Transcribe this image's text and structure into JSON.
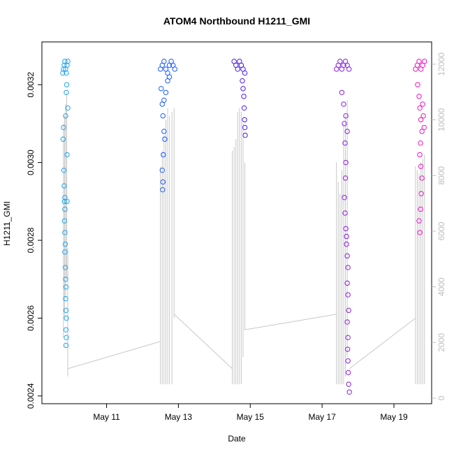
{
  "chart_data": {
    "type": "scatter",
    "title": "ATOM4 Northbound H1211_GMI",
    "xlabel": "Date",
    "ylabel": "H1211_GMI",
    "x_ticks": [
      "May 11",
      "May 13",
      "May 15",
      "May 17",
      "May 19"
    ],
    "x_tick_days": [
      11,
      13,
      15,
      17,
      19
    ],
    "xlim_days": [
      9.2,
      20.05
    ],
    "ylim": [
      0.00238,
      0.00331
    ],
    "y_ticks": [
      0.0024,
      0.0026,
      0.0028,
      0.003,
      0.0032
    ],
    "y_tick_labels": [
      "0.0024",
      "0.0026",
      "0.0028",
      "0.0030",
      "0.0032"
    ],
    "right_axis": {
      "label": "",
      "ylim": [
        -200,
        12800
      ],
      "ticks": [
        0,
        2000,
        4000,
        6000,
        8000,
        10000,
        12000
      ],
      "tick_labels": [
        "0",
        "2000",
        "4000",
        "6000",
        "8000",
        "10000",
        "12000"
      ],
      "color": "#bdbdbd"
    },
    "series": [
      {
        "color": "#1EA6F2",
        "points": [
          [
            9.78,
            0.00323
          ],
          [
            9.8,
            0.00324
          ],
          [
            9.82,
            0.00325
          ],
          [
            9.84,
            0.00326
          ],
          [
            9.86,
            0.00324
          ],
          [
            9.88,
            0.00323
          ],
          [
            9.9,
            0.00325
          ],
          [
            9.92,
            0.00326
          ],
          [
            9.79,
            0.00306
          ],
          [
            9.8,
            0.00309
          ],
          [
            9.81,
            0.00298
          ],
          [
            9.82,
            0.00294
          ],
          [
            9.83,
            0.0029
          ],
          [
            9.84,
            0.00288
          ],
          [
            9.83,
            0.00285
          ],
          [
            9.84,
            0.00282
          ],
          [
            9.85,
            0.00279
          ],
          [
            9.84,
            0.00277
          ],
          [
            9.85,
            0.00273
          ],
          [
            9.86,
            0.0027
          ],
          [
            9.87,
            0.00268
          ],
          [
            9.86,
            0.00265
          ],
          [
            9.87,
            0.00262
          ],
          [
            9.88,
            0.0026
          ],
          [
            9.87,
            0.00257
          ],
          [
            9.88,
            0.00255
          ],
          [
            9.87,
            0.00253
          ],
          [
            9.86,
            0.00312
          ],
          [
            9.88,
            0.00318
          ],
          [
            9.9,
            0.00302
          ],
          [
            9.9,
            0.0029
          ],
          [
            9.92,
            0.00314
          ],
          [
            9.84,
            0.00291
          ],
          [
            9.89,
            0.0032
          ]
        ],
        "lines": [
          [
            9.8,
            0.00255,
            0.0031
          ],
          [
            9.83,
            0.0026,
            0.00312
          ],
          [
            9.86,
            0.00265,
            0.00315
          ],
          [
            9.89,
            0.0027,
            0.00318
          ],
          [
            9.92,
            0.00245,
            0.00278
          ]
        ]
      },
      {
        "color": "#1A5CFF",
        "points": [
          [
            12.5,
            0.00324
          ],
          [
            12.55,
            0.00325
          ],
          [
            12.6,
            0.00326
          ],
          [
            12.65,
            0.00324
          ],
          [
            12.7,
            0.00323
          ],
          [
            12.75,
            0.00325
          ],
          [
            12.8,
            0.00326
          ],
          [
            12.85,
            0.00325
          ],
          [
            12.9,
            0.00324
          ],
          [
            12.52,
            0.00319
          ],
          [
            12.55,
            0.00315
          ],
          [
            12.57,
            0.00312
          ],
          [
            12.6,
            0.00308
          ],
          [
            12.62,
            0.00306
          ],
          [
            12.58,
            0.00302
          ],
          [
            12.55,
            0.00298
          ],
          [
            12.57,
            0.00295
          ],
          [
            12.56,
            0.00293
          ],
          [
            12.6,
            0.00316
          ],
          [
            12.65,
            0.00318
          ],
          [
            12.7,
            0.00321
          ],
          [
            12.75,
            0.00322
          ]
        ],
        "lines": [
          [
            12.5,
            0.00243,
            0.00299
          ],
          [
            12.55,
            0.00243,
            0.00303
          ],
          [
            12.6,
            0.00243,
            0.00307
          ],
          [
            12.65,
            0.00243,
            0.00311
          ],
          [
            12.7,
            0.00243,
            0.00314
          ],
          [
            12.75,
            0.00243,
            0.00312
          ],
          [
            12.82,
            0.00243,
            0.00313
          ],
          [
            12.88,
            0.0026,
            0.00314
          ]
        ]
      },
      {
        "color": "#4E1AF0",
        "points": [
          [
            14.55,
            0.00326
          ],
          [
            14.6,
            0.00325
          ],
          [
            14.65,
            0.00324
          ],
          [
            14.7,
            0.00326
          ],
          [
            14.75,
            0.00325
          ],
          [
            14.8,
            0.00324
          ],
          [
            14.85,
            0.00323
          ],
          [
            14.78,
            0.00321
          ],
          [
            14.8,
            0.00319
          ],
          [
            14.82,
            0.00317
          ],
          [
            14.83,
            0.00314
          ],
          [
            14.84,
            0.00311
          ],
          [
            14.85,
            0.00309
          ],
          [
            14.86,
            0.00307
          ]
        ],
        "lines": [
          [
            14.5,
            0.00243,
            0.00303
          ],
          [
            14.55,
            0.00243,
            0.00304
          ],
          [
            14.6,
            0.00243,
            0.00306
          ],
          [
            14.65,
            0.00243,
            0.00313
          ],
          [
            14.7,
            0.00243,
            0.00314
          ],
          [
            14.75,
            0.00243,
            0.00313
          ],
          [
            14.8,
            0.0025,
            0.0031
          ],
          [
            14.85,
            0.00257,
            0.003
          ]
        ]
      },
      {
        "color": "#8A1FE0",
        "points": [
          [
            17.4,
            0.00324
          ],
          [
            17.45,
            0.00325
          ],
          [
            17.5,
            0.00326
          ],
          [
            17.55,
            0.00324
          ],
          [
            17.6,
            0.00325
          ],
          [
            17.65,
            0.00326
          ],
          [
            17.7,
            0.00325
          ],
          [
            17.75,
            0.00324
          ],
          [
            17.55,
            0.00318
          ],
          [
            17.6,
            0.00315
          ],
          [
            17.62,
            0.0031
          ],
          [
            17.64,
            0.00305
          ],
          [
            17.66,
            0.003
          ],
          [
            17.65,
            0.00296
          ],
          [
            17.62,
            0.00291
          ],
          [
            17.64,
            0.00287
          ],
          [
            17.66,
            0.00283
          ],
          [
            17.68,
            0.00279
          ],
          [
            17.7,
            0.00276
          ],
          [
            17.72,
            0.00273
          ],
          [
            17.7,
            0.00269
          ],
          [
            17.72,
            0.00266
          ],
          [
            17.74,
            0.00262
          ],
          [
            17.7,
            0.00259
          ],
          [
            17.72,
            0.00255
          ],
          [
            17.71,
            0.00252
          ],
          [
            17.72,
            0.00249
          ],
          [
            17.73,
            0.00246
          ],
          [
            17.74,
            0.00243
          ],
          [
            17.76,
            0.00241
          ],
          [
            17.66,
            0.00312
          ],
          [
            17.7,
            0.00308
          ],
          [
            17.68,
            0.00281
          ]
        ],
        "lines": [
          [
            17.4,
            0.00243,
            0.003
          ],
          [
            17.45,
            0.00243,
            0.00295
          ],
          [
            17.5,
            0.00243,
            0.00292
          ],
          [
            17.55,
            0.00243,
            0.00298
          ],
          [
            17.6,
            0.00243,
            0.0031
          ],
          [
            17.65,
            0.00245,
            0.00312
          ],
          [
            17.7,
            0.0025,
            0.00316
          ]
        ]
      },
      {
        "color": "#F015C6",
        "points": [
          [
            19.6,
            0.00324
          ],
          [
            19.65,
            0.00325
          ],
          [
            19.7,
            0.00326
          ],
          [
            19.75,
            0.00324
          ],
          [
            19.8,
            0.00325
          ],
          [
            19.85,
            0.00326
          ],
          [
            19.66,
            0.0032
          ],
          [
            19.7,
            0.00317
          ],
          [
            19.72,
            0.00314
          ],
          [
            19.75,
            0.00311
          ],
          [
            19.78,
            0.00308
          ],
          [
            19.74,
            0.00305
          ],
          [
            19.72,
            0.00302
          ],
          [
            19.75,
            0.00299
          ],
          [
            19.78,
            0.00296
          ],
          [
            19.76,
            0.00292
          ],
          [
            19.74,
            0.00288
          ],
          [
            19.7,
            0.00285
          ],
          [
            19.72,
            0.00282
          ],
          [
            19.8,
            0.00315
          ],
          [
            19.82,
            0.00312
          ],
          [
            19.84,
            0.00309
          ]
        ],
        "lines": [
          [
            19.6,
            0.00243,
            0.00299
          ],
          [
            19.65,
            0.00243,
            0.00298
          ],
          [
            19.7,
            0.00243,
            0.00297
          ],
          [
            19.75,
            0.00243,
            0.003
          ],
          [
            19.8,
            0.00243,
            0.00301
          ],
          [
            19.85,
            0.00243,
            0.00302
          ]
        ]
      }
    ],
    "altitude_connectors": [
      [
        9.92,
        0.00247,
        12.5,
        0.00254
      ],
      [
        12.88,
        0.00261,
        14.5,
        0.00247
      ],
      [
        14.85,
        0.00257,
        17.4,
        0.00261
      ],
      [
        17.76,
        0.00247,
        19.6,
        0.0026
      ]
    ],
    "grid": false,
    "legend": "none"
  }
}
